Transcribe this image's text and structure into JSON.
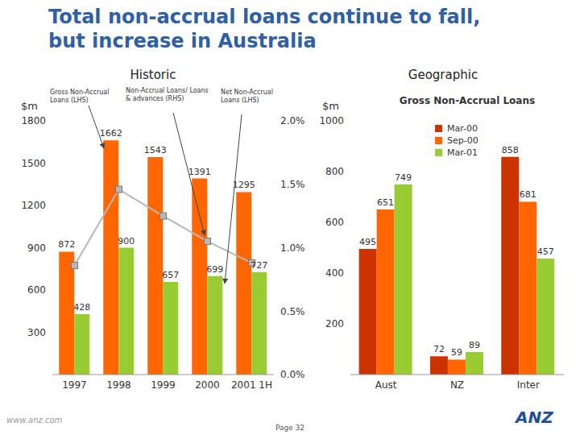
{
  "title": "Total non-accrual loans continue to fall, but increase in Australia",
  "footer": {
    "url": "www.anz.com",
    "page": "Page 32",
    "logo": "ANZ"
  },
  "chart_data": [
    {
      "type": "bar",
      "title": "Historic",
      "y_label": "$m",
      "categories": [
        "1997",
        "1998",
        "1999",
        "2000",
        "2001 1H"
      ],
      "series": [
        {
          "name": "Gross Non-Accrual Loans (LHS)",
          "color": "#ff6600",
          "values": [
            872,
            1662,
            1543,
            1391,
            1295
          ]
        },
        {
          "name": "Net Non-Accrual Loans (LHS)",
          "color": "#99cc33",
          "values": [
            428,
            900,
            657,
            699,
            727
          ]
        },
        {
          "name": "Non-Accrual Loans/ Loans & advances (RHS)",
          "type": "line",
          "axis": "y2",
          "color": "#b8b8b8",
          "marker": "square",
          "values": [
            0.86,
            1.46,
            1.25,
            1.05,
            0.88
          ]
        }
      ],
      "ylim": [
        0,
        1800
      ],
      "yticks": [
        0,
        300,
        600,
        900,
        1200,
        1500,
        1800
      ],
      "y2lim": [
        0,
        2
      ],
      "y2ticks": [
        {
          "value": 0,
          "label": "0.0%"
        },
        {
          "value": 0.5,
          "label": "0.5%"
        },
        {
          "value": 1,
          "label": "1.0%"
        },
        {
          "value": 1.5,
          "label": "1.5%"
        },
        {
          "value": 2,
          "label": "2.0%"
        }
      ],
      "data_labels": true,
      "grid": false
    },
    {
      "type": "bar",
      "title": "Geographic",
      "subtitle": "Gross Non-Accrual Loans",
      "y_label": "$m",
      "categories": [
        "Aust",
        "NZ",
        "Inter"
      ],
      "series": [
        {
          "name": "Mar-00",
          "color": "#cc3300",
          "values": [
            495,
            72,
            858
          ]
        },
        {
          "name": "Sep-00",
          "color": "#ff6600",
          "values": [
            651,
            59,
            681
          ]
        },
        {
          "name": "Mar-01",
          "color": "#99cc33",
          "values": [
            749,
            89,
            457
          ]
        }
      ],
      "ylim": [
        0,
        1000
      ],
      "yticks": [
        0,
        200,
        400,
        600,
        800,
        1000
      ],
      "data_labels": true,
      "grid": false,
      "legend": "upper right"
    }
  ]
}
